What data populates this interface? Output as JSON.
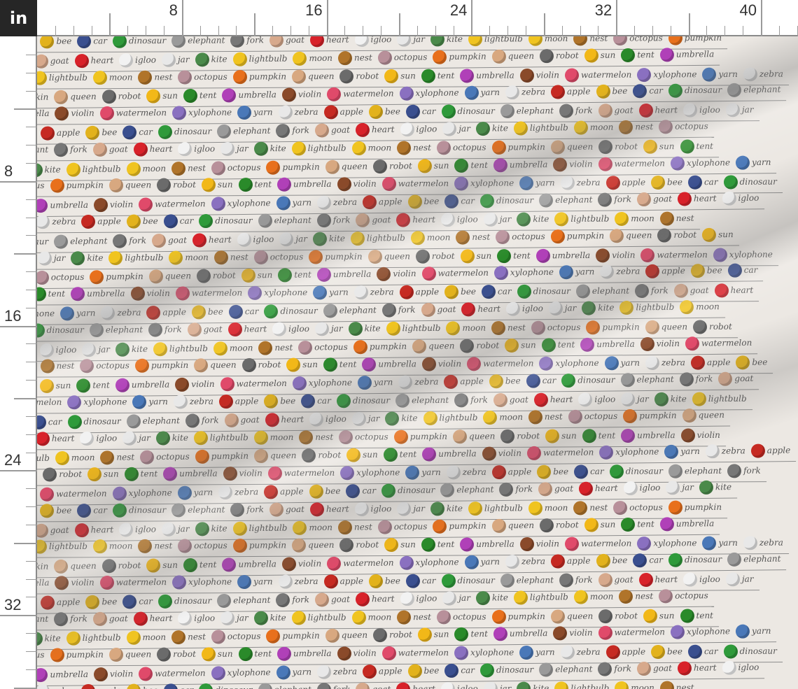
{
  "ruler": {
    "unit_label": "in",
    "top_labels": [
      "8",
      "16",
      "24",
      "32",
      "40"
    ],
    "left_labels": [
      "8",
      "16",
      "24",
      "32"
    ]
  },
  "fabric": {
    "background_color": "#ece8e3",
    "words": [
      "apple",
      "bee",
      "car",
      "dinosaur",
      "elephant",
      "fork",
      "goat",
      "heart",
      "igloo",
      "jar",
      "kite",
      "lightbulb",
      "moon",
      "nest",
      "octopus",
      "pumpkin",
      "queen",
      "robot",
      "sun",
      "tent",
      "umbrella",
      "violin",
      "watermelon",
      "xylophone",
      "yarn",
      "zebra"
    ],
    "icon_colors": [
      "#c62a22",
      "#e2b21c",
      "#3a4f8f",
      "#2f9a3a",
      "#9a9a9a",
      "#777777",
      "#d7a98c",
      "#d8222a",
      "#f2f2f2",
      "#e8e8e8",
      "#4a8a4a",
      "#f0c420",
      "#f0c420",
      "#b0742a",
      "#b8909a",
      "#e8701c",
      "#d8a880",
      "#6b6b6b",
      "#f2b818",
      "#2a8a2a",
      "#b040b8",
      "#8a4a2a",
      "#e04a6a",
      "#8a70c0",
      "#4a78b8",
      "#e8e8e8"
    ]
  }
}
